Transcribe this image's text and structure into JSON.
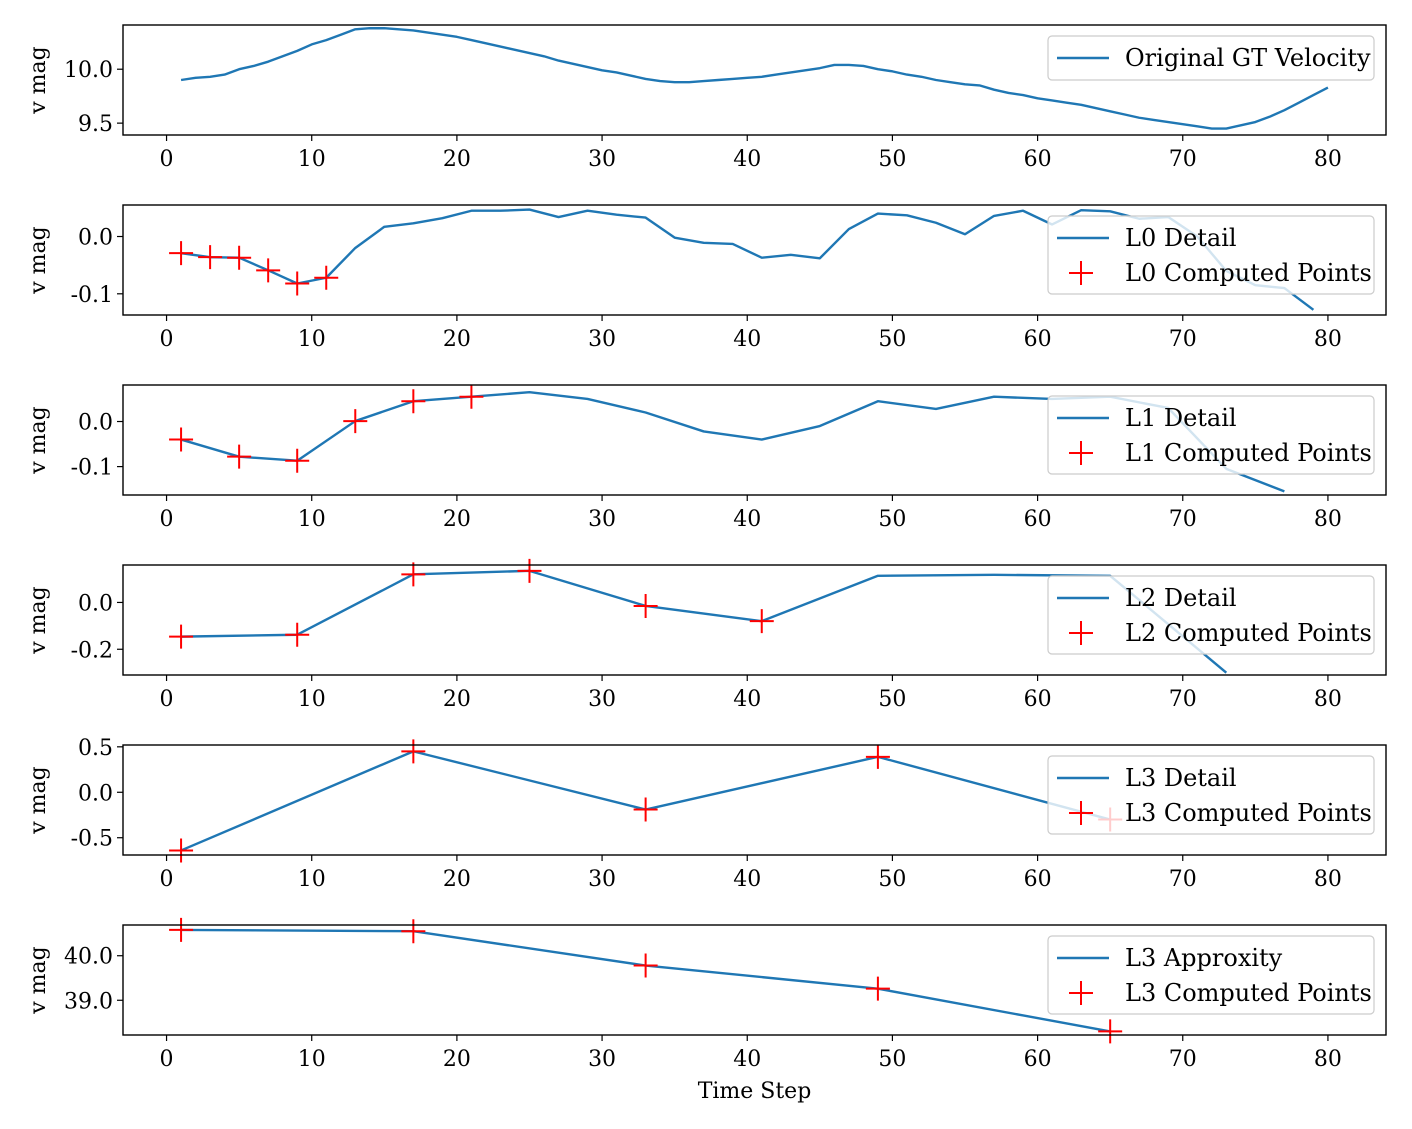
{
  "chart_data": [
    {
      "type": "line",
      "ylabel": "v mag",
      "xlabel": "",
      "xlim": [
        -3,
        84
      ],
      "ylim": [
        9.39,
        10.41
      ],
      "xticks": [
        "0",
        "10",
        "20",
        "30",
        "40",
        "50",
        "60",
        "70",
        "80"
      ],
      "yticks": [
        {
          "v": 9.5,
          "label": "9.5"
        },
        {
          "v": 10.0,
          "label": "10.0"
        }
      ],
      "legend": [
        "Original GT Velocity"
      ],
      "series": {
        "name": "Original GT Velocity",
        "x": [
          1,
          2,
          3,
          4,
          5,
          6,
          7,
          8,
          9,
          10,
          11,
          12,
          13,
          14,
          15,
          16,
          17,
          18,
          19,
          20,
          21,
          22,
          23,
          24,
          25,
          26,
          27,
          28,
          29,
          30,
          31,
          32,
          33,
          34,
          35,
          36,
          37,
          38,
          39,
          40,
          41,
          42,
          43,
          44,
          45,
          46,
          47,
          48,
          49,
          50,
          51,
          52,
          53,
          54,
          55,
          56,
          57,
          58,
          59,
          60,
          61,
          62,
          63,
          64,
          65,
          66,
          67,
          68,
          69,
          70,
          71,
          72,
          73,
          74,
          75,
          76,
          77,
          78,
          79,
          80
        ],
        "y": [
          9.9,
          9.92,
          9.93,
          9.95,
          10.0,
          10.03,
          10.07,
          10.12,
          10.17,
          10.23,
          10.27,
          10.32,
          10.37,
          10.38,
          10.38,
          10.37,
          10.36,
          10.34,
          10.32,
          10.3,
          10.27,
          10.24,
          10.21,
          10.18,
          10.15,
          10.12,
          10.08,
          10.05,
          10.02,
          9.99,
          9.97,
          9.94,
          9.91,
          9.89,
          9.88,
          9.88,
          9.89,
          9.9,
          9.91,
          9.92,
          9.93,
          9.95,
          9.97,
          9.99,
          10.01,
          10.04,
          10.04,
          10.03,
          10.0,
          9.98,
          9.95,
          9.93,
          9.9,
          9.88,
          9.86,
          9.85,
          9.81,
          9.78,
          9.76,
          9.73,
          9.71,
          9.69,
          9.67,
          9.64,
          9.61,
          9.58,
          9.55,
          9.53,
          9.51,
          9.49,
          9.47,
          9.45,
          9.45,
          9.48,
          9.51,
          9.56,
          9.62,
          9.69,
          9.76,
          9.83
        ]
      },
      "points": null
    },
    {
      "type": "line",
      "ylabel": "v mag",
      "xlabel": "",
      "xlim": [
        -3,
        84
      ],
      "ylim": [
        -0.137,
        0.055
      ],
      "xticks": [
        "0",
        "10",
        "20",
        "30",
        "40",
        "50",
        "60",
        "70",
        "80"
      ],
      "yticks": [
        {
          "v": 0.0,
          "label": "0.0"
        },
        {
          "v": -0.1,
          "label": "-0.1"
        }
      ],
      "legend": [
        "L0 Detail",
        "L0 Computed Points"
      ],
      "series": {
        "name": "L0 Detail",
        "x": [
          1,
          3,
          5,
          7,
          9,
          11,
          13,
          15,
          17,
          19,
          21,
          23,
          25,
          27,
          29,
          31,
          33,
          35,
          37,
          39,
          41,
          43,
          45,
          47,
          49,
          51,
          53,
          55,
          57,
          59,
          61,
          63,
          65,
          67,
          69,
          71,
          73,
          75,
          77,
          79
        ],
        "y": [
          -0.029,
          -0.036,
          -0.037,
          -0.059,
          -0.082,
          -0.072,
          -0.02,
          0.017,
          0.023,
          0.032,
          0.045,
          0.045,
          0.047,
          0.034,
          0.045,
          0.038,
          0.033,
          -0.002,
          -0.011,
          -0.013,
          -0.037,
          -0.032,
          -0.038,
          0.013,
          0.04,
          0.037,
          0.024,
          0.004,
          0.036,
          0.045,
          0.021,
          0.046,
          0.044,
          0.031,
          0.034,
          0.0,
          -0.06,
          -0.085,
          -0.09,
          -0.128
        ]
      },
      "points": {
        "name": "L0 Computed Points",
        "x": [
          1,
          3,
          5,
          7,
          9,
          11
        ],
        "y": [
          -0.029,
          -0.036,
          -0.037,
          -0.059,
          -0.082,
          -0.072
        ]
      }
    },
    {
      "type": "line",
      "ylabel": "v mag",
      "xlabel": "",
      "xlim": [
        -3,
        84
      ],
      "ylim": [
        -0.163,
        0.081
      ],
      "xticks": [
        "0",
        "10",
        "20",
        "30",
        "40",
        "50",
        "60",
        "70",
        "80"
      ],
      "yticks": [
        {
          "v": 0.0,
          "label": "0.0"
        },
        {
          "v": -0.1,
          "label": "-0.1"
        }
      ],
      "legend": [
        "L1 Detail",
        "L1 Computed Points"
      ],
      "series": {
        "name": "L1 Detail",
        "x": [
          1,
          5,
          9,
          13,
          17,
          21,
          25,
          29,
          33,
          37,
          41,
          45,
          49,
          53,
          57,
          61,
          65,
          69,
          73,
          77
        ],
        "y": [
          -0.04,
          -0.078,
          -0.087,
          0.001,
          0.045,
          0.055,
          0.065,
          0.05,
          0.02,
          -0.022,
          -0.04,
          -0.01,
          0.045,
          0.028,
          0.055,
          0.05,
          0.055,
          0.03,
          -0.105,
          -0.155
        ]
      },
      "points": {
        "name": "L1 Computed Points",
        "x": [
          1,
          5,
          9,
          13,
          17,
          21
        ],
        "y": [
          -0.04,
          -0.078,
          -0.087,
          0.001,
          0.045,
          0.055
        ]
      }
    },
    {
      "type": "line",
      "ylabel": "v mag",
      "xlabel": "",
      "xlim": [
        -3,
        84
      ],
      "ylim": [
        -0.31,
        0.16
      ],
      "xticks": [
        "0",
        "10",
        "20",
        "30",
        "40",
        "50",
        "60",
        "70",
        "80"
      ],
      "yticks": [
        {
          "v": 0.0,
          "label": "0.0"
        },
        {
          "v": -0.2,
          "label": "-0.2"
        }
      ],
      "legend": [
        "L2 Detail",
        "L2 Computed Points"
      ],
      "series": {
        "name": "L2 Detail",
        "x": [
          1,
          9,
          17,
          25,
          33,
          41,
          49,
          57,
          65,
          73
        ],
        "y": [
          -0.146,
          -0.138,
          0.12,
          0.135,
          -0.015,
          -0.08,
          0.114,
          0.118,
          0.114,
          -0.3
        ]
      },
      "points": {
        "name": "L2 Computed Points",
        "x": [
          1,
          9,
          17,
          25,
          33,
          41
        ],
        "y": [
          -0.146,
          -0.138,
          0.12,
          0.135,
          -0.015,
          -0.08
        ]
      }
    },
    {
      "type": "line",
      "ylabel": "v mag",
      "xlabel": "",
      "xlim": [
        -3,
        84
      ],
      "ylim": [
        -0.69,
        0.52
      ],
      "xticks": [
        "0",
        "10",
        "20",
        "30",
        "40",
        "50",
        "60",
        "70",
        "80"
      ],
      "yticks": [
        {
          "v": 0.5,
          "label": "0.5"
        },
        {
          "v": 0.0,
          "label": "0.0"
        },
        {
          "v": -0.5,
          "label": "-0.5"
        }
      ],
      "legend": [
        "L3 Detail",
        "L3 Computed Points"
      ],
      "series": {
        "name": "L3 Detail",
        "x": [
          1,
          17,
          33,
          49,
          65
        ],
        "y": [
          -0.64,
          0.45,
          -0.19,
          0.39,
          -0.3
        ]
      },
      "points": {
        "name": "L3 Computed Points",
        "x": [
          1,
          17,
          33,
          49,
          65
        ],
        "y": [
          -0.64,
          0.45,
          -0.19,
          0.39,
          -0.3
        ]
      }
    },
    {
      "type": "line",
      "ylabel": "v mag",
      "xlabel": "Time Step",
      "xlim": [
        -3,
        84
      ],
      "ylim": [
        38.22,
        40.69
      ],
      "xticks": [
        "0",
        "10",
        "20",
        "30",
        "40",
        "50",
        "60",
        "70",
        "80"
      ],
      "yticks": [
        {
          "v": 40.0,
          "label": "40.0"
        },
        {
          "v": 39.0,
          "label": "39.0"
        }
      ],
      "legend": [
        "L3 Approxity",
        "L3 Computed Points"
      ],
      "series": {
        "name": "L3 Approxity",
        "x": [
          1,
          17,
          33,
          49,
          65
        ],
        "y": [
          40.58,
          40.55,
          39.78,
          39.26,
          38.3
        ]
      },
      "points": {
        "name": "L3 Computed Points",
        "x": [
          1,
          17,
          33,
          49,
          65
        ],
        "y": [
          40.58,
          40.55,
          39.78,
          39.26,
          38.3
        ]
      }
    }
  ],
  "colors": {
    "line": "#1f77b4",
    "marker": "#ff0000"
  }
}
